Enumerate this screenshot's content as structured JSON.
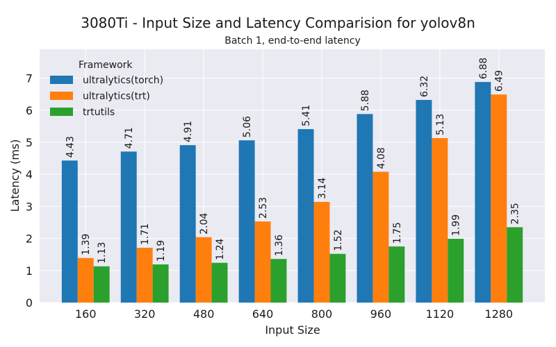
{
  "chart_data": {
    "type": "bar",
    "title": "3080Ti - Input Size and Latency Comparision for yolov8n",
    "subtitle": "Batch 1, end-to-end latency",
    "xlabel": "Input Size",
    "ylabel": "Latency (ms)",
    "categories": [
      "160",
      "320",
      "480",
      "640",
      "800",
      "960",
      "1120",
      "1280"
    ],
    "ylim": [
      0,
      7.9
    ],
    "yticks": [
      0,
      1,
      2,
      3,
      4,
      5,
      6,
      7
    ],
    "grid": true,
    "legend": {
      "title": "Framework",
      "placement": "top-left"
    },
    "series": [
      {
        "name": "ultralytics(torch)",
        "color": "#1f77b4",
        "values": [
          4.43,
          4.71,
          4.91,
          5.06,
          5.41,
          5.88,
          6.32,
          6.88
        ],
        "labels": [
          "4.43",
          "4.71",
          "4.91",
          "5.06",
          "5.41",
          "5.88",
          "6.32",
          "6.88"
        ]
      },
      {
        "name": "ultralytics(trt)",
        "color": "#ff7f0e",
        "values": [
          1.39,
          1.71,
          2.04,
          2.53,
          3.14,
          4.08,
          5.13,
          6.49
        ],
        "labels": [
          "1.39",
          "1.71",
          "2.04",
          "2.53",
          "3.14",
          "4.08",
          "5.13",
          "6.49"
        ]
      },
      {
        "name": "trtutils",
        "color": "#2ca02c",
        "values": [
          1.13,
          1.19,
          1.24,
          1.36,
          1.52,
          1.75,
          1.99,
          2.35
        ],
        "labels": [
          "1.13",
          "1.19",
          "1.24",
          "1.36",
          "1.52",
          "1.75",
          "1.99",
          "2.35"
        ]
      }
    ],
    "colors": {
      "plot_background": "#eaeaf2",
      "grid": "#ffffff"
    }
  }
}
